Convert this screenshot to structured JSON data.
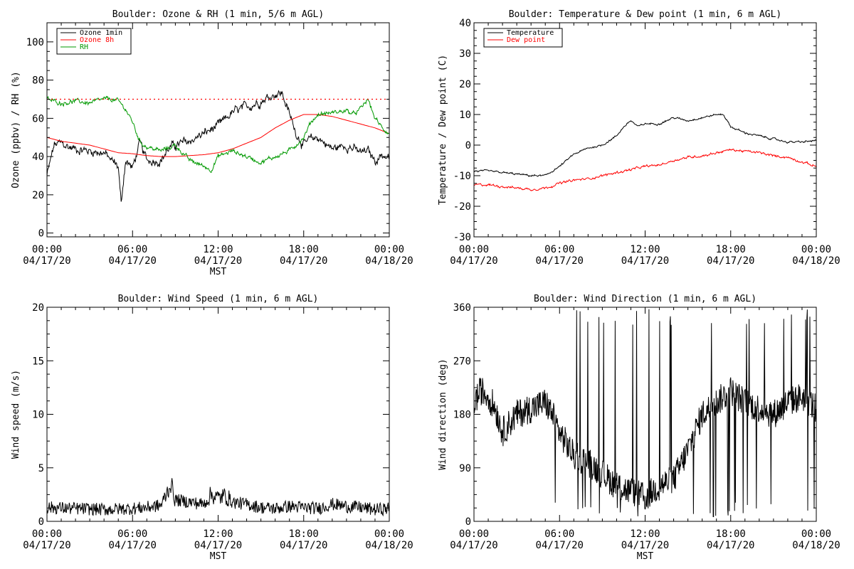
{
  "chart_data": [
    {
      "id": "ozone_rh",
      "type": "line",
      "title": "Boulder: Ozone & RH (1 min, 5/6 m AGL)",
      "xlabel": "MST",
      "ylabel": "Ozone (ppbv) / RH (%)",
      "x_range_hours": [
        0,
        24
      ],
      "ylim": [
        -2,
        110
      ],
      "yticks": [
        0,
        20,
        40,
        60,
        80,
        100
      ],
      "xtick_labels": [
        {
          "hours": 0,
          "time": "00:00",
          "date": "04/17/20"
        },
        {
          "hours": 6,
          "time": "06:00",
          "date": "04/17/20"
        },
        {
          "hours": 12,
          "time": "12:00",
          "date": "04/17/20"
        },
        {
          "hours": 18,
          "time": "18:00",
          "date": "04/17/20"
        },
        {
          "hours": 24,
          "time": "00:00",
          "date": "04/18/20"
        }
      ],
      "legend": {
        "placement": "top-left",
        "entries": [
          {
            "name": "Ozone 1min",
            "color": "#000000"
          },
          {
            "name": "Ozone 8h",
            "color": "#ff0000"
          },
          {
            "name": "RH",
            "color": "#009900"
          }
        ]
      },
      "reference_lines": [
        {
          "y": 70,
          "color": "#ff0000",
          "style": "dotted"
        }
      ],
      "series": [
        {
          "name": "Ozone 1min",
          "color": "#000000",
          "noise": 3,
          "x": [
            0,
            0.5,
            1,
            1.5,
            2,
            3,
            4,
            4.5,
            5,
            5.2,
            5.5,
            6,
            6.5,
            7,
            8,
            8.5,
            9,
            10,
            11,
            12,
            13,
            14,
            15,
            15.5,
            16,
            16.5,
            17,
            17.5,
            18,
            18.5,
            19,
            20,
            21,
            22,
            22.5,
            23,
            23.5,
            24
          ],
          "y": [
            30,
            46,
            47,
            45,
            44,
            43,
            42,
            38,
            35,
            15,
            38,
            34,
            47,
            38,
            38,
            44,
            46,
            48,
            52,
            56,
            63,
            66,
            69,
            71,
            73,
            73,
            62,
            52,
            46,
            49,
            50,
            44,
            46,
            42,
            43,
            38,
            41,
            39
          ]
        },
        {
          "name": "Ozone 8h",
          "color": "#ff0000",
          "noise": 0,
          "x": [
            0,
            1,
            2,
            3,
            4,
            5,
            6,
            7,
            8,
            9,
            10,
            11,
            12,
            13,
            14,
            15,
            16,
            17,
            18,
            19,
            20,
            21,
            22,
            23,
            24
          ],
          "y": [
            50,
            48,
            47,
            46,
            44,
            42,
            41.5,
            40.5,
            40,
            40,
            40.5,
            41,
            42,
            44,
            47,
            50,
            55,
            59,
            62,
            62,
            61,
            59,
            57,
            55,
            52
          ]
        },
        {
          "name": "RH",
          "color": "#009900",
          "noise": 1.5,
          "x": [
            0,
            1,
            2,
            3,
            4,
            4.5,
            5,
            5.5,
            6,
            6.5,
            7,
            8,
            9,
            10,
            11,
            11.5,
            12,
            13,
            14,
            15,
            16,
            17,
            18,
            18.5,
            19,
            20,
            21,
            21.5,
            22,
            22.5,
            23,
            23.5,
            24
          ],
          "y": [
            70,
            68,
            69,
            68,
            70,
            70,
            69,
            65,
            58,
            48,
            45,
            43,
            46,
            38,
            35,
            33,
            40,
            43,
            40,
            37,
            40,
            43,
            50,
            58,
            62,
            63,
            64,
            62,
            65,
            70,
            60,
            55,
            52
          ]
        }
      ]
    },
    {
      "id": "temp_dew",
      "type": "line",
      "title": "Boulder: Temperature & Dew point (1 min, 6 m AGL)",
      "xlabel": "",
      "ylabel": "Temperature / Dew point (C)",
      "x_range_hours": [
        0,
        24
      ],
      "ylim": [
        -30,
        40
      ],
      "yticks": [
        -30,
        -20,
        -10,
        0,
        10,
        20,
        30,
        40
      ],
      "xtick_labels": [
        {
          "hours": 0,
          "time": "00:00",
          "date": "04/17/20"
        },
        {
          "hours": 6,
          "time": "06:00",
          "date": "04/17/20"
        },
        {
          "hours": 12,
          "time": "12:00",
          "date": "04/17/20"
        },
        {
          "hours": 18,
          "time": "18:00",
          "date": "04/17/20"
        },
        {
          "hours": 24,
          "time": "00:00",
          "date": "04/18/20"
        }
      ],
      "legend": {
        "placement": "top-left",
        "entries": [
          {
            "name": "Temperature",
            "color": "#000000"
          },
          {
            "name": "Dew point",
            "color": "#ff0000"
          }
        ]
      },
      "reference_lines": [],
      "series": [
        {
          "name": "Temperature",
          "color": "#000000",
          "noise": 0.4,
          "x": [
            0,
            1,
            2,
            3,
            4,
            5,
            6,
            7,
            8,
            9,
            10,
            10.5,
            11,
            11.5,
            12,
            13,
            14,
            15,
            16,
            17,
            17.5,
            18,
            19,
            20,
            21,
            22,
            23,
            24
          ],
          "y": [
            -8.5,
            -8.5,
            -9,
            -9.5,
            -10,
            -10,
            -7,
            -3,
            -1,
            0,
            3,
            6,
            8,
            6,
            7,
            7,
            9,
            8,
            9,
            10,
            10,
            6,
            4,
            3,
            2,
            1,
            1,
            1.5
          ]
        },
        {
          "name": "Dew point",
          "color": "#ff0000",
          "noise": 0.5,
          "x": [
            0,
            1,
            2,
            3,
            4,
            5,
            6,
            7,
            8,
            9,
            10,
            11,
            12,
            13,
            14,
            15,
            16,
            17,
            18,
            19,
            20,
            21,
            22,
            23,
            24
          ],
          "y": [
            -13,
            -13,
            -13.5,
            -14,
            -14.5,
            -14,
            -12.5,
            -11.5,
            -11,
            -10,
            -9,
            -8,
            -7,
            -6.5,
            -5,
            -4,
            -3.5,
            -2.5,
            -1.5,
            -2,
            -2.5,
            -3.5,
            -4,
            -5.5,
            -7
          ]
        }
      ]
    },
    {
      "id": "wind_speed",
      "type": "line",
      "title": "Boulder: Wind Speed (1 min, 6 m AGL)",
      "xlabel": "MST",
      "ylabel": "Wind speed (m/s)",
      "x_range_hours": [
        0,
        24
      ],
      "ylim": [
        0,
        20
      ],
      "yticks": [
        0,
        5,
        10,
        15,
        20
      ],
      "xtick_labels": [
        {
          "hours": 0,
          "time": "00:00",
          "date": "04/17/20"
        },
        {
          "hours": 6,
          "time": "06:00",
          "date": "04/17/20"
        },
        {
          "hours": 12,
          "time": "12:00",
          "date": "04/17/20"
        },
        {
          "hours": 18,
          "time": "18:00",
          "date": "04/17/20"
        },
        {
          "hours": 24,
          "time": "00:00",
          "date": "04/18/20"
        }
      ],
      "legend": null,
      "reference_lines": [],
      "series": [
        {
          "name": "Wind speed",
          "color": "#000000",
          "noise": 0.6,
          "x": [
            0,
            2,
            4,
            6,
            7,
            8,
            8.7,
            9,
            10,
            11,
            11.5,
            12,
            12.5,
            13,
            14,
            15,
            16,
            17,
            18,
            19,
            20,
            21,
            22,
            23,
            24
          ],
          "y": [
            1.3,
            1.2,
            1.1,
            1.2,
            1.3,
            1.5,
            3.5,
            2,
            1.8,
            1.6,
            2.5,
            2.2,
            2.4,
            1.8,
            1.6,
            1.3,
            1.2,
            1.4,
            1.3,
            1.2,
            1.6,
            1.4,
            1.3,
            1.1,
            1.2
          ]
        }
      ]
    },
    {
      "id": "wind_dir",
      "type": "line",
      "title": "Boulder: Wind Direction (1 min, 6 m AGL)",
      "xlabel": "MST",
      "ylabel": "Wind direction (deg)",
      "x_range_hours": [
        0,
        24
      ],
      "ylim": [
        0,
        360
      ],
      "yticks": [
        0,
        90,
        180,
        270,
        360
      ],
      "xtick_labels": [
        {
          "hours": 0,
          "time": "00:00",
          "date": "04/17/20"
        },
        {
          "hours": 6,
          "time": "06:00",
          "date": "04/17/20"
        },
        {
          "hours": 12,
          "time": "12:00",
          "date": "04/17/20"
        },
        {
          "hours": 18,
          "time": "18:00",
          "date": "04/17/20"
        },
        {
          "hours": 24,
          "time": "00:00",
          "date": "04/18/20"
        }
      ],
      "legend": null,
      "reference_lines": [],
      "series": [
        {
          "name": "Wind direction",
          "color": "#000000",
          "noise": 25,
          "spikes": true,
          "x": [
            0,
            0.5,
            1,
            1.5,
            2,
            3,
            4,
            5,
            5.5,
            6,
            7,
            8,
            9,
            10,
            11,
            12,
            13,
            14,
            15,
            16,
            17,
            18,
            19,
            20,
            21,
            22,
            23,
            24
          ],
          "y": [
            200,
            220,
            210,
            190,
            150,
            180,
            190,
            200,
            180,
            150,
            110,
            100,
            80,
            60,
            50,
            40,
            60,
            70,
            120,
            180,
            200,
            220,
            200,
            190,
            180,
            200,
            210,
            190
          ]
        }
      ]
    }
  ]
}
